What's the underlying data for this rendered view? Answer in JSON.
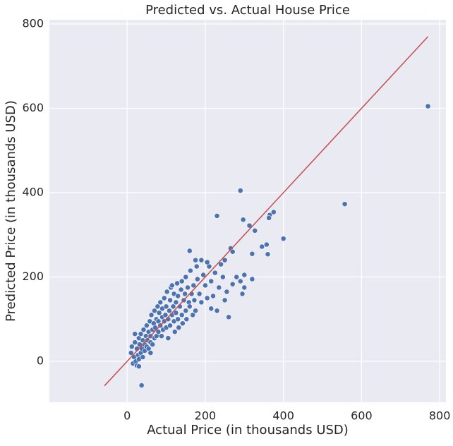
{
  "chart_data": {
    "type": "scatter",
    "title": "Predicted vs. Actual House Price",
    "xlabel": "Actual Price (in thousands USD)",
    "ylabel": "Predicted Price (in thousands USD)",
    "xlim": [
      -199,
      816
    ],
    "ylim": [
      -97,
      810
    ],
    "xticks": [
      0,
      200,
      400,
      600,
      800
    ],
    "yticks": [
      0,
      200,
      400,
      600,
      800
    ],
    "grid": true,
    "series": [
      {
        "color": "#4c72b0",
        "x": [
          10,
          12,
          15,
          18,
          20,
          22,
          25,
          25,
          28,
          30,
          30,
          32,
          35,
          35,
          38,
          40,
          40,
          42,
          45,
          45,
          48,
          50,
          50,
          52,
          55,
          55,
          58,
          60,
          60,
          62,
          65,
          65,
          68,
          70,
          70,
          72,
          75,
          75,
          78,
          80,
          80,
          82,
          85,
          85,
          88,
          90,
          90,
          92,
          95,
          95,
          98,
          100,
          100,
          102,
          105,
          108,
          110,
          110,
          112,
          115,
          118,
          120,
          120,
          122,
          125,
          125,
          128,
          130,
          130,
          132,
          135,
          138,
          140,
          140,
          142,
          145,
          148,
          150,
          150,
          152,
          155,
          158,
          160,
          162,
          165,
          168,
          170,
          172,
          175,
          178,
          180,
          185,
          190,
          195,
          200,
          205,
          210,
          215,
          220,
          225,
          235,
          245,
          255,
          280,
          20,
          30,
          60,
          105,
          115,
          175,
          190,
          205,
          770,
          557,
          290,
          230,
          400,
          365,
          375,
          297,
          327,
          313,
          363,
          345,
          357,
          360,
          320,
          320,
          295,
          300,
          37,
          160,
          265,
          270,
          250,
          240,
          270,
          290,
          230,
          250,
          215,
          260,
          300
        ],
        "values": [
          20,
          35,
          -5,
          10,
          45,
          0,
          30,
          -10,
          15,
          55,
          5,
          40,
          20,
          65,
          30,
          50,
          10,
          75,
          40,
          25,
          60,
          35,
          85,
          50,
          70,
          30,
          95,
          45,
          60,
          110,
          75,
          40,
          90,
          55,
          120,
          80,
          100,
          60,
          130,
          70,
          95,
          115,
          85,
          140,
          60,
          105,
          125,
          75,
          150,
          95,
          110,
          130,
          80,
          165,
          100,
          120,
          145,
          85,
          175,
          110,
          130,
          95,
          160,
          70,
          140,
          115,
          185,
          100,
          155,
          80,
          130,
          170,
          110,
          190,
          90,
          145,
          160,
          120,
          200,
          100,
          175,
          140,
          130,
          215,
          160,
          110,
          180,
          145,
          120,
          225,
          195,
          160,
          140,
          205,
          180,
          150,
          225,
          190,
          155,
          210,
          175,
          200,
          165,
          200,
          65,
          -12,
          20,
          55,
          180,
          240,
          240,
          235,
          605,
          373,
          405,
          345,
          291,
          347,
          354,
          336,
          310,
          322,
          340,
          272,
          277,
          254,
          255,
          195,
          160,
          205,
          -57,
          262,
          268,
          260,
          240,
          230,
          183,
          190,
          120,
          145,
          125,
          105,
          175
        ]
      },
      {
        "type": "line",
        "color": "#c44e52",
        "x": [
          -58,
          770
        ],
        "values": [
          -58,
          770
        ]
      }
    ]
  }
}
